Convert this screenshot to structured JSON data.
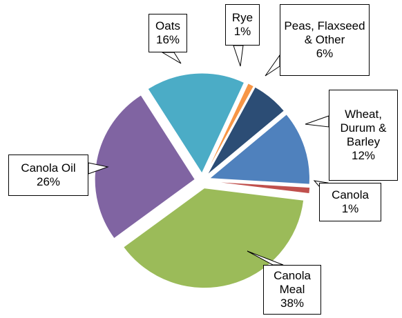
{
  "chart_data": {
    "type": "pie",
    "categories": [
      "Canola Meal",
      "Canola Oil",
      "Oats",
      "Rye",
      "Peas, Flaxseed & Other",
      "Wheat, Durum & Barley",
      "Canola"
    ],
    "values": [
      38,
      26,
      16,
      1,
      6,
      12,
      1
    ],
    "value_labels": [
      "38%",
      "26%",
      "16%",
      "1%",
      "6%",
      "12%",
      "1%"
    ],
    "colors": [
      "#9bbb59",
      "#8064a2",
      "#4bacc6",
      "#f79646",
      "#2c4d75",
      "#4f81bd",
      "#c0504d"
    ]
  }
}
